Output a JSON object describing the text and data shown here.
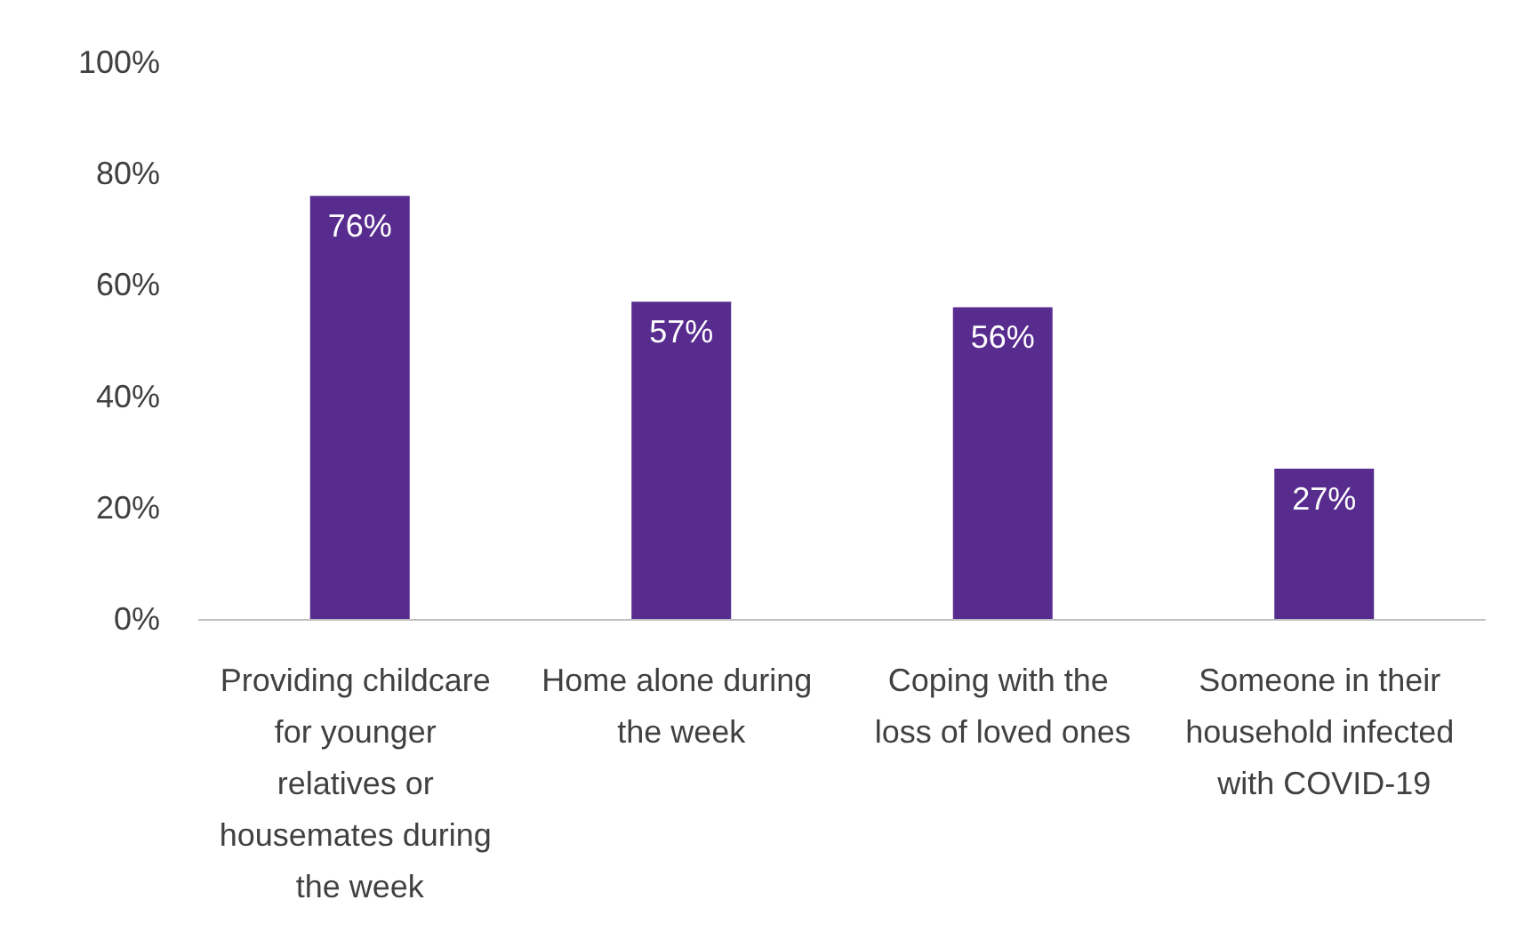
{
  "chart_data": {
    "type": "bar",
    "categories": [
      "Providing childcare for younger relatives or housemates during the week",
      "Home alone during the week",
      "Coping with the loss of loved ones",
      "Someone in their household infected with COVID-19"
    ],
    "values": [
      76,
      57,
      56,
      27
    ],
    "value_labels": [
      "76%",
      "57%",
      "56%",
      "27%"
    ],
    "color": "#582c8f",
    "ylim": [
      0,
      100
    ],
    "yticks": [
      {
        "value": 0,
        "label": "0%"
      },
      {
        "value": 20,
        "label": "20%"
      },
      {
        "value": 40,
        "label": "40%"
      },
      {
        "value": 60,
        "label": "60%"
      },
      {
        "value": 80,
        "label": "80%"
      },
      {
        "value": 100,
        "label": "100%"
      }
    ],
    "grid": false
  }
}
